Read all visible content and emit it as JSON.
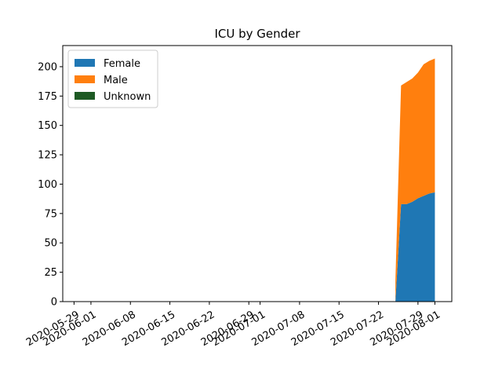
{
  "chart_data": {
    "type": "area",
    "stacked": true,
    "title": "ICU by Gender",
    "xlabel": "",
    "ylabel": "",
    "x_type": "date",
    "xlim": [
      "2020-05-27",
      "2020-08-04"
    ],
    "ylim": [
      0,
      218
    ],
    "x_ticks": [
      "2020-05-29",
      "2020-06-01",
      "2020-06-08",
      "2020-06-15",
      "2020-06-22",
      "2020-06-29",
      "2020-07-01",
      "2020-07-08",
      "2020-07-15",
      "2020-07-22",
      "2020-07-29",
      "2020-08-01"
    ],
    "y_ticks": [
      0,
      25,
      50,
      75,
      100,
      125,
      150,
      175,
      200
    ],
    "grid": false,
    "legend_position": "top-left",
    "x": [
      "2020-07-25",
      "2020-07-26",
      "2020-07-27",
      "2020-07-28",
      "2020-07-29",
      "2020-07-30",
      "2020-07-31",
      "2020-08-01"
    ],
    "series": [
      {
        "name": "Female",
        "color": "#1f77b4",
        "values": [
          0,
          83,
          83,
          85,
          88,
          90,
          92,
          93
        ]
      },
      {
        "name": "Male",
        "color": "#ff7f0e",
        "values": [
          18,
          101,
          104,
          105,
          107,
          112,
          113,
          114
        ]
      },
      {
        "name": "Unknown",
        "color": "#1e5a24",
        "values": [
          0,
          0,
          0,
          0,
          0,
          0,
          0,
          0
        ]
      }
    ]
  }
}
